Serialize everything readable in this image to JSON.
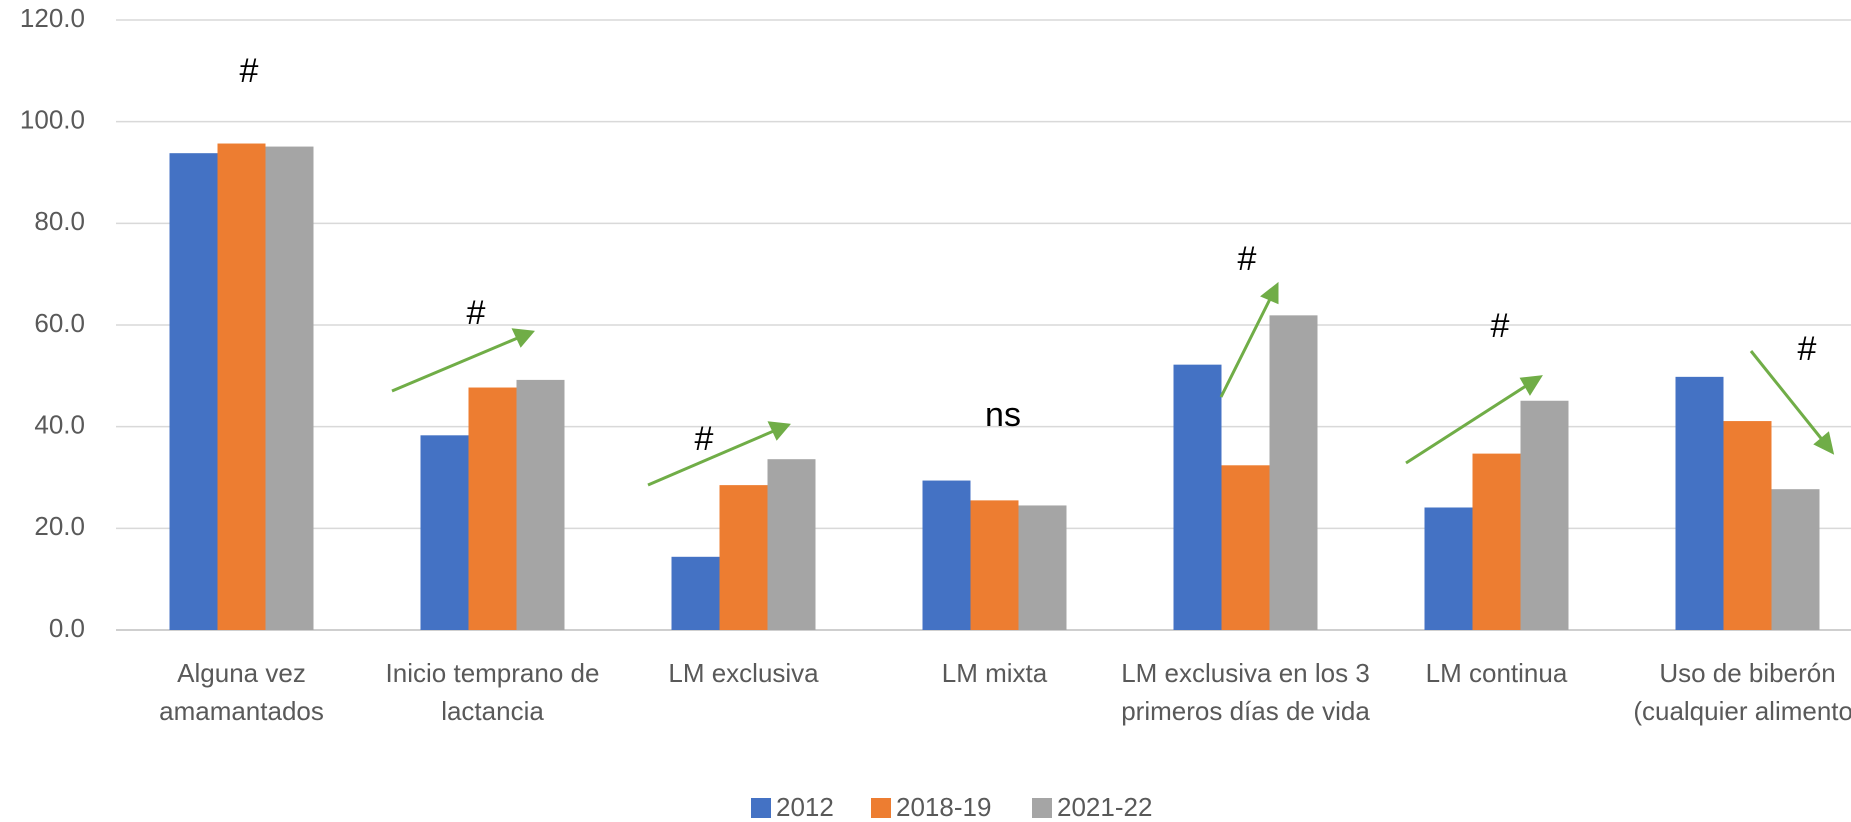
{
  "chart_data": {
    "type": "bar",
    "categories": [
      "Alguna vez amamantados",
      "Inicio temprano de lactancia",
      "LM exclusiva",
      "LM mixta",
      "LM exclusiva en los 3 primeros días de vida",
      "LM continua",
      "Uso de biberón (cualquier alimento)"
    ],
    "series": [
      {
        "name": "2012",
        "color": "#4472c4",
        "values": [
          93.8,
          38.3,
          14.4,
          29.4,
          52.2,
          24.1,
          49.8
        ]
      },
      {
        "name": "2018-19",
        "color": "#ed7d31",
        "values": [
          95.7,
          47.7,
          28.5,
          25.5,
          32.4,
          34.7,
          41.1
        ]
      },
      {
        "name": "2021-22",
        "color": "#a5a5a5",
        "values": [
          95.1,
          49.2,
          33.6,
          24.5,
          61.9,
          45.1,
          27.7
        ]
      }
    ],
    "annotations": [
      "#",
      "#",
      "#",
      "ns",
      "#",
      "#",
      "#"
    ],
    "ylim": [
      0,
      120
    ],
    "yticks": [
      {
        "value": 0,
        "label": "0.0"
      },
      {
        "value": 20,
        "label": "20.0"
      },
      {
        "value": 40,
        "label": "40.0"
      },
      {
        "value": 60,
        "label": "60.0"
      },
      {
        "value": 80,
        "label": "80.0"
      },
      {
        "value": 100,
        "label": "100.0"
      },
      {
        "value": 120,
        "label": "120.0"
      }
    ],
    "grid": true,
    "legend": "bottom"
  }
}
